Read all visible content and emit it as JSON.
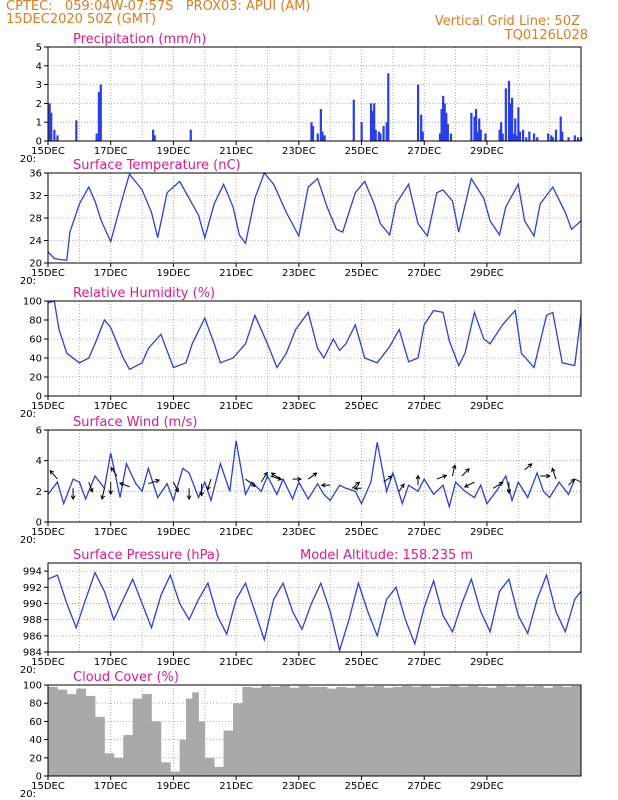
{
  "header": {
    "line1_left": "CPTEC:   059:04W-07:57S   PROX03: APUI (AM)",
    "line2_left": "15DEC2020 50Z (GMT)",
    "line1_right": "Vertical Grid Line: 50Z",
    "line2_right": "TQ0126L028"
  },
  "colors": {
    "header": "#e07b1f",
    "title": "#e0198c",
    "line": "#2a3ee6",
    "bar": "#2a3ee6",
    "cloud": "#a9a9a9",
    "arrow": "#000000"
  },
  "x_labels": [
    "15DEC",
    "17DEC",
    "19DEC",
    "21DEC",
    "23DEC",
    "25DEC",
    "27DEC",
    "29DEC"
  ],
  "panel_corner_label": "20:",
  "chart_data": [
    {
      "type": "bar",
      "title": "Precipitation  (mm/h)",
      "ylim": [
        0,
        5
      ],
      "yticks": [
        "0",
        "1",
        "2",
        "3",
        "4",
        "5"
      ],
      "x_unit": "days since 15DEC 00Z",
      "x": [
        0.05,
        0.1,
        0.2,
        0.3,
        0.9,
        1.55,
        1.62,
        1.68,
        3.35,
        3.4,
        4.55,
        8.4,
        8.45,
        8.6,
        8.7,
        8.75,
        8.82,
        9.75,
        10.0,
        10.3,
        10.35,
        10.4,
        10.45,
        10.55,
        10.6,
        10.7,
        10.8,
        10.85,
        11.8,
        11.9,
        11.95,
        12.5,
        12.55,
        12.6,
        12.65,
        12.7,
        12.75,
        12.85,
        13.5,
        13.6,
        13.65,
        13.7,
        13.75,
        13.8,
        13.95,
        14.4,
        14.45,
        14.5,
        14.6,
        14.7,
        14.75,
        14.8,
        14.85,
        14.9,
        14.95,
        15.0,
        15.05,
        15.15,
        15.25,
        15.35,
        15.5,
        15.6,
        15.95,
        16.05,
        16.1,
        16.2,
        16.35,
        16.4,
        16.6,
        16.8,
        16.9,
        17.0
      ],
      "values": [
        2.0,
        1.5,
        0.6,
        0.3,
        1.1,
        0.4,
        2.6,
        3.0,
        0.6,
        0.3,
        0.6,
        1.0,
        0.8,
        0.4,
        1.7,
        0.5,
        0.3,
        2.2,
        1.0,
        2.0,
        1.6,
        2.0,
        0.6,
        0.5,
        0.4,
        0.8,
        1.0,
        3.6,
        3.0,
        1.4,
        0.5,
        0.4,
        1.7,
        2.4,
        2.0,
        1.5,
        0.9,
        0.4,
        1.5,
        1.3,
        1.7,
        0.5,
        1.2,
        0.6,
        0.4,
        0.6,
        1.0,
        0.4,
        2.8,
        3.2,
        2.0,
        2.3,
        0.4,
        1.2,
        0.3,
        1.8,
        0.5,
        0.6,
        0.2,
        0.5,
        0.4,
        0.2,
        0.4,
        0.3,
        0.2,
        0.6,
        1.3,
        0.5,
        0.2,
        0.3,
        0.2,
        0.2
      ]
    },
    {
      "type": "line",
      "title": "Surface Temperature  (nC)",
      "ylim": [
        20,
        36
      ],
      "yticks": [
        "20",
        "24",
        "28",
        "32",
        "36"
      ],
      "x_unit": "days since 15DEC 00Z",
      "x": [
        0,
        0.2,
        0.4,
        0.6,
        0.7,
        1.0,
        1.3,
        1.5,
        1.7,
        2.0,
        2.4,
        2.6,
        3.0,
        3.3,
        3.5,
        3.8,
        4.2,
        4.5,
        4.8,
        5.0,
        5.3,
        5.6,
        5.9,
        6.1,
        6.3,
        6.6,
        6.9,
        7.2,
        7.6,
        8.0,
        8.3,
        8.6,
        8.9,
        9.2,
        9.4,
        9.8,
        10.1,
        10.4,
        10.6,
        10.9,
        11.1,
        11.5,
        11.8,
        12.1,
        12.4,
        12.6,
        12.9,
        13.1,
        13.5,
        13.9,
        14.1,
        14.4,
        14.6,
        15.0,
        15.2,
        15.5,
        15.7,
        16.1,
        16.5,
        16.7,
        17.0
      ],
      "values": [
        22,
        20.8,
        20.6,
        20.5,
        25.5,
        30.5,
        33.5,
        31.0,
        27.5,
        23.8,
        32,
        35.8,
        33,
        29,
        24.5,
        32.5,
        34.5,
        31.5,
        28.5,
        24.5,
        30.5,
        34,
        30,
        25,
        23.5,
        31.5,
        36,
        34,
        29,
        24.8,
        33.5,
        35,
        30,
        26,
        25.5,
        32.5,
        34.5,
        30.5,
        27,
        25,
        30.5,
        34,
        27,
        24.8,
        32.5,
        33,
        31,
        25.5,
        35,
        31.5,
        27.5,
        25,
        30,
        34,
        27.5,
        24.8,
        30.5,
        33.5,
        29,
        26,
        27.5
      ]
    },
    {
      "type": "line",
      "title": "Relative Humidity  (%)",
      "ylim": [
        0,
        100
      ],
      "yticks": [
        "0",
        "20",
        "40",
        "60",
        "80",
        "100"
      ],
      "x_unit": "days since 15DEC 00Z",
      "x": [
        0,
        0.2,
        0.35,
        0.6,
        1.0,
        1.3,
        1.5,
        1.8,
        2.0,
        2.4,
        2.6,
        3.0,
        3.2,
        3.6,
        4.0,
        4.4,
        4.6,
        5.0,
        5.3,
        5.5,
        5.9,
        6.3,
        6.6,
        7.0,
        7.3,
        7.6,
        7.9,
        8.3,
        8.6,
        8.8,
        9.1,
        9.3,
        9.5,
        9.8,
        10.1,
        10.5,
        10.9,
        11.2,
        11.5,
        11.8,
        12.0,
        12.3,
        12.6,
        12.8,
        13.1,
        13.3,
        13.6,
        13.9,
        14.1,
        14.5,
        14.9,
        15.1,
        15.5,
        15.9,
        16.1,
        16.4,
        16.8,
        17.0
      ],
      "values": [
        98,
        100,
        70,
        45,
        35,
        40,
        55,
        80,
        72,
        40,
        28,
        35,
        50,
        65,
        30,
        35,
        55,
        82,
        55,
        35,
        40,
        55,
        85,
        55,
        30,
        45,
        70,
        88,
        50,
        40,
        60,
        48,
        55,
        75,
        40,
        35,
        52,
        70,
        36,
        40,
        75,
        90,
        88,
        58,
        32,
        45,
        88,
        60,
        55,
        75,
        90,
        45,
        30,
        85,
        88,
        35,
        32,
        85
      ]
    },
    {
      "type": "line",
      "title": "Surface  Wind  (m/s)",
      "ylim": [
        0,
        6
      ],
      "yticks": [
        "0",
        "2",
        "4",
        "6"
      ],
      "x_unit": "days since 15DEC 00Z",
      "x": [
        0,
        0.3,
        0.5,
        0.8,
        1.0,
        1.2,
        1.5,
        1.8,
        2.0,
        2.3,
        2.5,
        2.8,
        3.0,
        3.2,
        3.5,
        3.8,
        4.0,
        4.3,
        4.5,
        4.8,
        5.0,
        5.2,
        5.5,
        5.8,
        6.0,
        6.3,
        6.5,
        6.8,
        7.0,
        7.3,
        7.5,
        7.8,
        8.0,
        8.3,
        8.6,
        8.8,
        9.0,
        9.3,
        9.5,
        9.8,
        10.0,
        10.3,
        10.5,
        10.8,
        11.0,
        11.3,
        11.5,
        11.8,
        12.0,
        12.3,
        12.6,
        12.8,
        13.0,
        13.3,
        13.6,
        13.8,
        14.0,
        14.3,
        14.6,
        14.8,
        15.0,
        15.3,
        15.6,
        15.8,
        16.0,
        16.3,
        16.6,
        16.8,
        17.0
      ],
      "values": [
        1.8,
        2.6,
        1.2,
        2.8,
        2.6,
        1.5,
        3.0,
        2.2,
        4.5,
        1.6,
        3.8,
        2.5,
        2.0,
        3.5,
        1.6,
        2.5,
        1.4,
        3.5,
        3.2,
        1.6,
        2.6,
        1.4,
        3.8,
        2.0,
        5.3,
        1.8,
        2.6,
        2.0,
        3.0,
        1.8,
        2.8,
        1.5,
        2.6,
        1.5,
        2.5,
        1.8,
        1.4,
        2.4,
        2.2,
        2.0,
        1.2,
        2.6,
        5.2,
        2.0,
        3.2,
        1.2,
        2.4,
        2.0,
        2.8,
        1.8,
        2.4,
        1.0,
        2.6,
        2.0,
        1.6,
        2.4,
        1.2,
        2.0,
        3.0,
        1.4,
        2.6,
        1.6,
        3.2,
        2.0,
        1.6,
        2.6,
        1.8,
        2.8,
        2.6
      ],
      "wind_arrows": [
        [
          0.3,
          2.8,
          -0.6,
          0.7
        ],
        [
          0.8,
          2.2,
          0.0,
          -0.9
        ],
        [
          1.3,
          2.6,
          0.3,
          -0.8
        ],
        [
          1.8,
          2.2,
          -0.2,
          -0.9
        ],
        [
          2.0,
          2.6,
          0.0,
          -1.0
        ],
        [
          2.2,
          3.0,
          -0.5,
          0.7
        ],
        [
          2.6,
          2.3,
          -0.8,
          0.3
        ],
        [
          3.2,
          2.5,
          0.9,
          0.3
        ],
        [
          4.0,
          2.6,
          0.4,
          -0.8
        ],
        [
          4.5,
          2.2,
          0.0,
          -0.9
        ],
        [
          4.9,
          2.5,
          0.0,
          -1.0
        ],
        [
          5.2,
          2.8,
          -0.3,
          -0.9
        ],
        [
          6.3,
          2.8,
          0.8,
          -0.6
        ],
        [
          6.8,
          2.6,
          0.5,
          0.8
        ],
        [
          7.1,
          3.0,
          0.9,
          -0.3
        ],
        [
          7.4,
          2.8,
          -0.7,
          0.5
        ],
        [
          7.8,
          2.8,
          0.7,
          0.0
        ],
        [
          8.3,
          2.8,
          0.7,
          0.5
        ],
        [
          9.0,
          2.4,
          -0.7,
          0.0
        ],
        [
          9.7,
          2.2,
          0.6,
          0.5
        ],
        [
          10.0,
          2.2,
          -0.6,
          0.0
        ],
        [
          10.7,
          2.6,
          0.7,
          0.5
        ],
        [
          11.2,
          2.0,
          0.4,
          0.6
        ],
        [
          11.8,
          2.4,
          0.0,
          0.8
        ],
        [
          12.4,
          2.8,
          0.8,
          0.3
        ],
        [
          12.9,
          3.0,
          0.2,
          0.9
        ],
        [
          13.2,
          3.0,
          0.6,
          0.6
        ],
        [
          13.6,
          2.6,
          -0.8,
          -0.4
        ],
        [
          14.2,
          2.2,
          0.8,
          0.5
        ],
        [
          14.7,
          2.6,
          0.0,
          -0.9
        ],
        [
          15.2,
          3.4,
          0.6,
          0.5
        ],
        [
          15.7,
          3.0,
          0.8,
          0.0
        ],
        [
          16.2,
          2.8,
          -0.3,
          0.9
        ],
        [
          16.6,
          2.4,
          0.5,
          0.5
        ]
      ]
    },
    {
      "type": "line",
      "title": "Surface  Pressure  (hPa)",
      "subtitle": "Model Altitude:  158.235  m",
      "ylim": [
        984,
        995
      ],
      "yticks": [
        "984",
        "986",
        "988",
        "990",
        "992",
        "994"
      ],
      "x_unit": "days since 15DEC 00Z",
      "x": [
        0,
        0.3,
        0.6,
        0.9,
        1.2,
        1.5,
        1.8,
        2.1,
        2.4,
        2.7,
        3.0,
        3.3,
        3.6,
        3.9,
        4.2,
        4.5,
        4.8,
        5.1,
        5.4,
        5.7,
        6.0,
        6.3,
        6.6,
        6.9,
        7.2,
        7.5,
        7.8,
        8.1,
        8.4,
        8.7,
        9.0,
        9.3,
        9.6,
        9.9,
        10.2,
        10.5,
        10.8,
        11.1,
        11.4,
        11.7,
        12.0,
        12.3,
        12.6,
        12.9,
        13.2,
        13.5,
        13.8,
        14.1,
        14.4,
        14.7,
        15.0,
        15.3,
        15.6,
        15.9,
        16.2,
        16.5,
        16.8,
        17.0
      ],
      "values": [
        993,
        993.5,
        990,
        987,
        990.5,
        993.8,
        991.5,
        988,
        990.5,
        993,
        990,
        987,
        991,
        993.5,
        990,
        988,
        990.5,
        992.5,
        988.5,
        986.2,
        990.5,
        992.5,
        989,
        985.5,
        990.5,
        992.5,
        989,
        986.8,
        990,
        992.5,
        989,
        984.2,
        988,
        992.5,
        989,
        986,
        990.5,
        992,
        988,
        985,
        989.5,
        992.8,
        988.5,
        986.5,
        990,
        993,
        989,
        986.5,
        991.5,
        993,
        988.5,
        986.3,
        990.5,
        993.5,
        989,
        986.5,
        990.5,
        991.5
      ]
    },
    {
      "type": "area",
      "title": "Cloud Cover  (%)",
      "ylim": [
        0,
        100
      ],
      "yticks": [
        "0",
        "20",
        "40",
        "60",
        "80",
        "100"
      ],
      "x_unit": "days since 15DEC 00Z",
      "x": [
        0,
        0.3,
        0.6,
        0.9,
        1.2,
        1.5,
        1.8,
        2.1,
        2.4,
        2.7,
        3.0,
        3.3,
        3.6,
        3.9,
        4.2,
        4.4,
        4.6,
        4.8,
        5.0,
        5.3,
        5.6,
        5.9,
        6.2,
        6.5,
        6.8,
        7.1,
        7.4,
        7.7,
        8.0,
        8.3,
        8.6,
        8.9,
        9.2,
        9.5,
        9.8,
        10.1,
        10.4,
        10.7,
        11.0,
        11.3,
        11.6,
        11.9,
        12.2,
        12.5,
        12.8,
        13.1,
        13.4,
        13.7,
        14.0,
        14.3,
        14.6,
        14.9,
        15.2,
        15.5,
        15.8,
        16.1,
        16.4,
        16.7,
        17.0
      ],
      "values": [
        98,
        95,
        90,
        96,
        88,
        65,
        25,
        20,
        45,
        85,
        90,
        60,
        15,
        5,
        40,
        85,
        92,
        60,
        20,
        10,
        50,
        80,
        98,
        97,
        99,
        98,
        99,
        97,
        99,
        98,
        98,
        96,
        98,
        97,
        99,
        98,
        99,
        97,
        98,
        99,
        98,
        99,
        97,
        98,
        99,
        98,
        99,
        98,
        97,
        99,
        98,
        99,
        98,
        99,
        97,
        99,
        98,
        99,
        98
      ]
    }
  ]
}
